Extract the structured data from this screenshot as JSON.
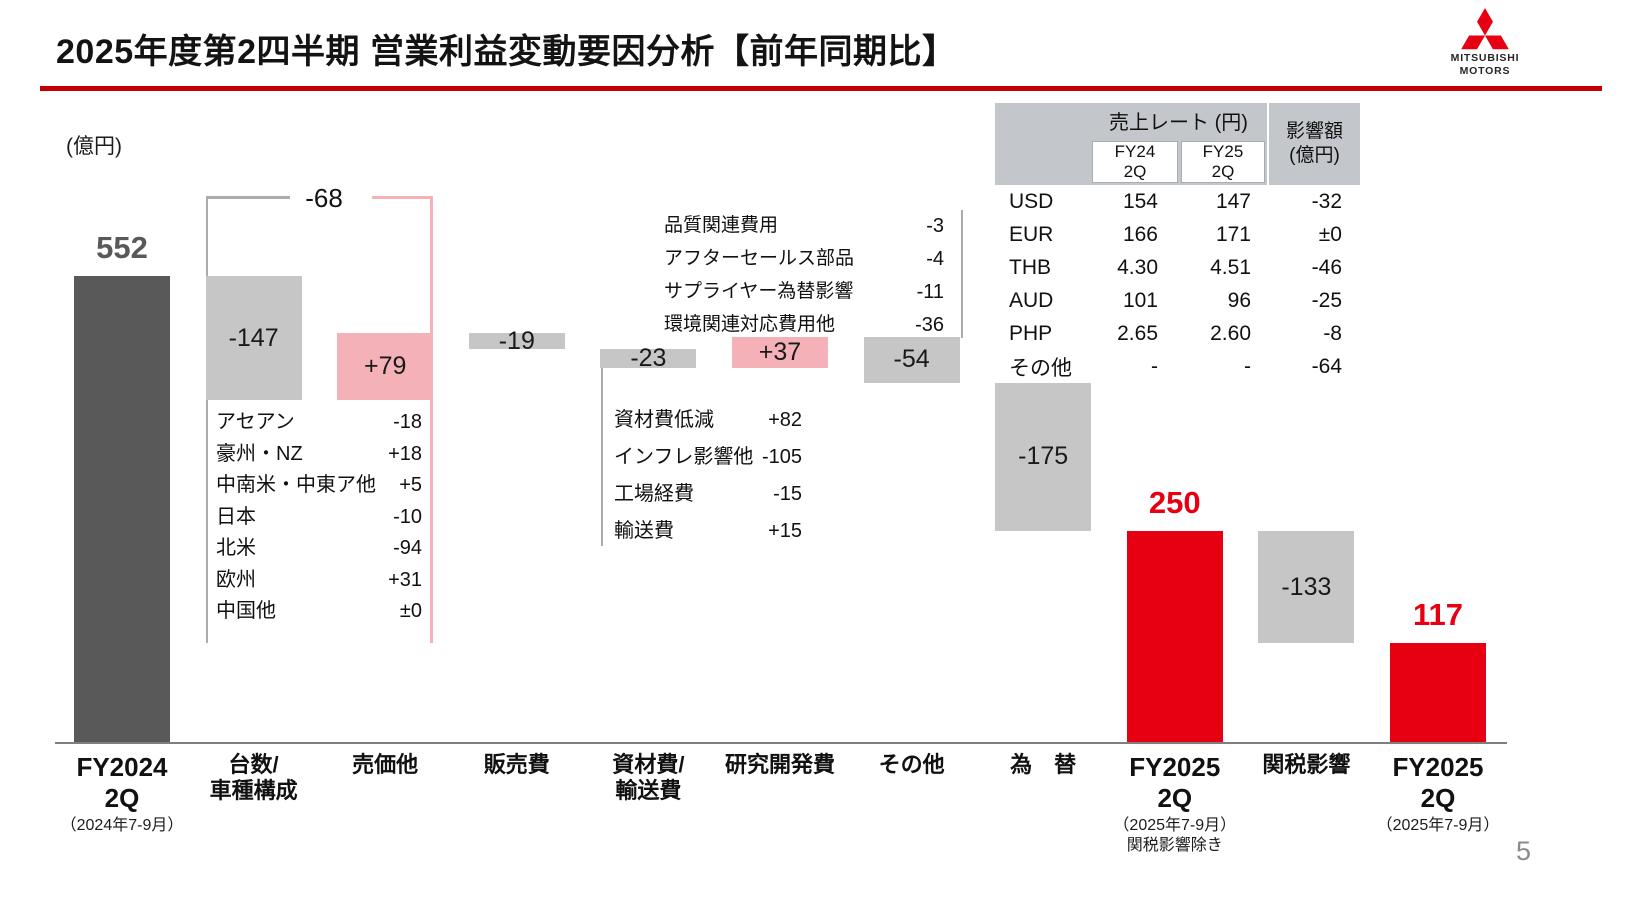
{
  "header": {
    "title": "2025年度第2四半期 営業利益変動要因分析【前年同期比】",
    "logo_brand_top": "MITSUBISHI",
    "logo_brand_bottom": "MOTORS"
  },
  "unit_label": "(億円)",
  "page_number": "5",
  "colors": {
    "brand_red": "#e60012",
    "rule_red": "#c40000",
    "bar_dark_gray": "#595959",
    "bar_light_gray": "#c6c6c6",
    "bar_pink": "#f4b1b7",
    "table_header_gray": "#c3c6ca"
  },
  "chart_data": {
    "type": "waterfall",
    "title": "2025年度第2四半期 営業利益変動要因分析【前年同期比】",
    "ylabel": "(億円)",
    "columns": [
      {
        "id": "fy2024-2q",
        "axis_label": "FY2024\n2Q",
        "axis_sub": "（2024年7-9月）",
        "kind": "total",
        "value": 552,
        "display": "552",
        "bar": "dark",
        "value_color": "gray",
        "value_pos": "above"
      },
      {
        "id": "volume-mix",
        "axis_label": "台数/\n車種構成",
        "axis_sub": "",
        "kind": "delta",
        "value": -147,
        "display": "-147",
        "bar": "gray",
        "value_pos": "inside"
      },
      {
        "id": "price-other",
        "axis_label": "売価他",
        "axis_sub": "",
        "kind": "delta",
        "value": 79,
        "display": "+79",
        "bar": "pink",
        "value_pos": "inside"
      },
      {
        "id": "selling-expense",
        "axis_label": "販売費",
        "axis_sub": "",
        "kind": "delta",
        "value": -19,
        "display": "-19",
        "bar": "gray",
        "value_pos": "inside"
      },
      {
        "id": "material-logistics",
        "axis_label": "資材費/\n輸送費",
        "axis_sub": "",
        "kind": "delta",
        "value": -23,
        "display": "-23",
        "bar": "gray",
        "value_pos": "inside"
      },
      {
        "id": "rnd-expense",
        "axis_label": "研究開発費",
        "axis_sub": "",
        "kind": "delta",
        "value": 37,
        "display": "+37",
        "bar": "pink",
        "value_pos": "inside"
      },
      {
        "id": "others",
        "axis_label": "その他",
        "axis_sub": "",
        "kind": "delta",
        "value": -54,
        "display": "-54",
        "bar": "gray",
        "value_pos": "inside"
      },
      {
        "id": "forex",
        "axis_label": "為　替",
        "axis_sub": "",
        "kind": "delta",
        "value": -175,
        "display": "-175",
        "bar": "gray",
        "value_pos": "inside"
      },
      {
        "id": "fy2025-2q-ex-tariff",
        "axis_label": "FY2025\n2Q",
        "axis_sub": "（2025年7-9月）\n関税影響除き",
        "kind": "total",
        "value": 250,
        "display": "250",
        "bar": "red",
        "value_color": "red",
        "value_pos": "above"
      },
      {
        "id": "tariff-impact",
        "axis_label": "関税影響",
        "axis_sub": "",
        "kind": "delta",
        "value": -133,
        "display": "-133",
        "bar": "gray",
        "value_pos": "inside"
      },
      {
        "id": "fy2025-2q",
        "axis_label": "FY2025\n2Q",
        "axis_sub": "（2025年7-9月）",
        "kind": "total",
        "value": 117,
        "display": "117",
        "bar": "red",
        "value_color": "red",
        "value_pos": "above"
      }
    ],
    "bracket": {
      "label": "-68",
      "across": [
        "volume-mix",
        "price-other"
      ]
    }
  },
  "breakdowns": {
    "volume_mix": {
      "rows": [
        {
          "label": "アセアン",
          "value": "-18"
        },
        {
          "label": "豪州・NZ",
          "value": "+18"
        },
        {
          "label": "中南米・中東ア他",
          "value": "+5"
        },
        {
          "label": "日本",
          "value": "-10"
        },
        {
          "label": "北米",
          "value": "-94"
        },
        {
          "label": "欧州",
          "value": "+31"
        },
        {
          "label": "中国他",
          "value": "±0"
        }
      ]
    },
    "others": {
      "rows": [
        {
          "label": "品質関連費用",
          "value": "-3"
        },
        {
          "label": "アフターセールス部品",
          "value": "-4"
        },
        {
          "label": "サプライヤー為替影響",
          "value": "-11"
        },
        {
          "label": "環境関連対応費用他",
          "value": "-36"
        }
      ]
    },
    "material": {
      "rows": [
        {
          "label": "資材費低減",
          "value": "+82"
        },
        {
          "label": "インフレ影響他",
          "value": "-105"
        },
        {
          "label": "工場経費",
          "value": "-15"
        },
        {
          "label": "輸送費",
          "value": "+15"
        }
      ]
    }
  },
  "fx_table": {
    "header_rate": "売上レート (円)",
    "header_impact": "影響額\n(億円)",
    "col_fy24": "FY24\n2Q",
    "col_fy25": "FY25\n2Q",
    "rows": [
      {
        "currency": "USD",
        "fy24": "154",
        "fy25": "147",
        "impact": "-32"
      },
      {
        "currency": "EUR",
        "fy24": "166",
        "fy25": "171",
        "impact": "±0"
      },
      {
        "currency": "THB",
        "fy24": "4.30",
        "fy25": "4.51",
        "impact": "-46"
      },
      {
        "currency": "AUD",
        "fy24": "101",
        "fy25": "96",
        "impact": "-25"
      },
      {
        "currency": "PHP",
        "fy24": "2.65",
        "fy25": "2.60",
        "impact": "-8"
      },
      {
        "currency": "その他",
        "fy24": "-",
        "fy25": "-",
        "impact": "-64"
      }
    ]
  }
}
